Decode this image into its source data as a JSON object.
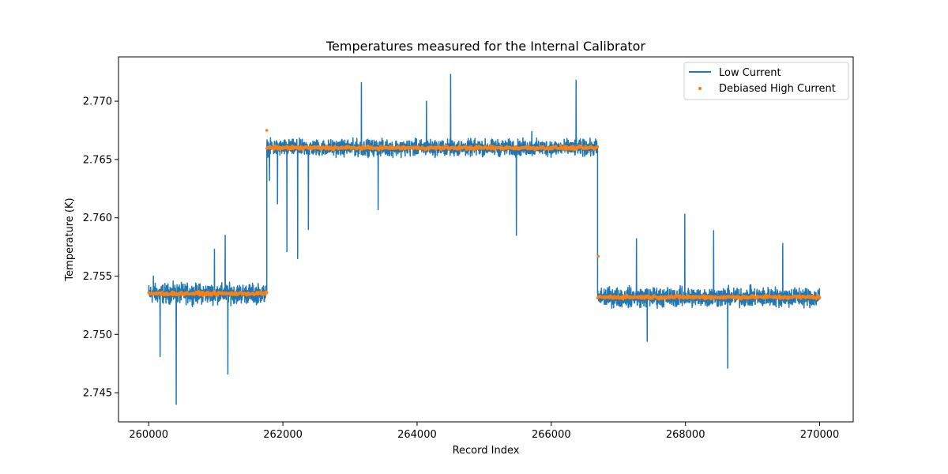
{
  "chart_data": {
    "type": "line",
    "title": "Temperatures measured for the Internal Calibrator",
    "xlabel": "Record Index",
    "ylabel": "Temperature (K)",
    "xlim": [
      259550,
      270500
    ],
    "ylim": [
      2.7425,
      2.7738
    ],
    "xticks": [
      260000,
      262000,
      264000,
      266000,
      268000,
      270000
    ],
    "yticks": [
      2.745,
      2.75,
      2.755,
      2.76,
      2.765,
      2.77
    ],
    "xtick_labels": [
      "260000",
      "262000",
      "264000",
      "266000",
      "268000",
      "270000"
    ],
    "ytick_labels": [
      "2.745",
      "2.750",
      "2.755",
      "2.760",
      "2.765",
      "2.770"
    ],
    "legend_position": "top-right",
    "series": [
      {
        "name": "Low Current",
        "style": "line",
        "color": "#1f77b4",
        "segments": [
          {
            "x_start": 260000,
            "x_end": 261760,
            "mean": 2.7535,
            "noise": 0.0012
          },
          {
            "x_start": 261760,
            "x_end": 266690,
            "mean": 2.766,
            "noise": 0.001
          },
          {
            "x_start": 266690,
            "x_end": 270000,
            "mean": 2.7532,
            "noise": 0.0012
          }
        ],
        "spikes": [
          [
            260070,
            2.755
          ],
          [
            260170,
            2.7481
          ],
          [
            260410,
            2.744
          ],
          [
            260980,
            2.7573
          ],
          [
            261140,
            2.7585
          ],
          [
            261180,
            2.7466
          ],
          [
            261770,
            2.7655
          ],
          [
            261800,
            2.7632
          ],
          [
            261920,
            2.7612
          ],
          [
            262060,
            2.7571
          ],
          [
            262220,
            2.7565
          ],
          [
            262380,
            2.759
          ],
          [
            263170,
            2.7716
          ],
          [
            263420,
            2.7607
          ],
          [
            264140,
            2.77
          ],
          [
            264500,
            2.7723
          ],
          [
            265480,
            2.7585
          ],
          [
            265710,
            2.7674
          ],
          [
            266370,
            2.7718
          ],
          [
            266720,
            2.7528
          ],
          [
            267270,
            2.7582
          ],
          [
            267430,
            2.7494
          ],
          [
            267990,
            2.7603
          ],
          [
            268420,
            2.7589
          ],
          [
            268630,
            2.7471
          ],
          [
            269450,
            2.7578
          ]
        ]
      },
      {
        "name": "Debiased High Current",
        "style": "scatter",
        "color": "#ff7f0e",
        "segments": [
          {
            "x_start": 260000,
            "x_end": 261760,
            "mean": 2.7535,
            "noise": 0.0002
          },
          {
            "x_start": 261760,
            "x_end": 266690,
            "mean": 2.766,
            "noise": 0.0002
          },
          {
            "x_start": 266690,
            "x_end": 270000,
            "mean": 2.7532,
            "noise": 0.0002
          }
        ],
        "outliers": [
          [
            261760,
            2.7675
          ],
          [
            266700,
            2.7567
          ]
        ]
      }
    ]
  }
}
